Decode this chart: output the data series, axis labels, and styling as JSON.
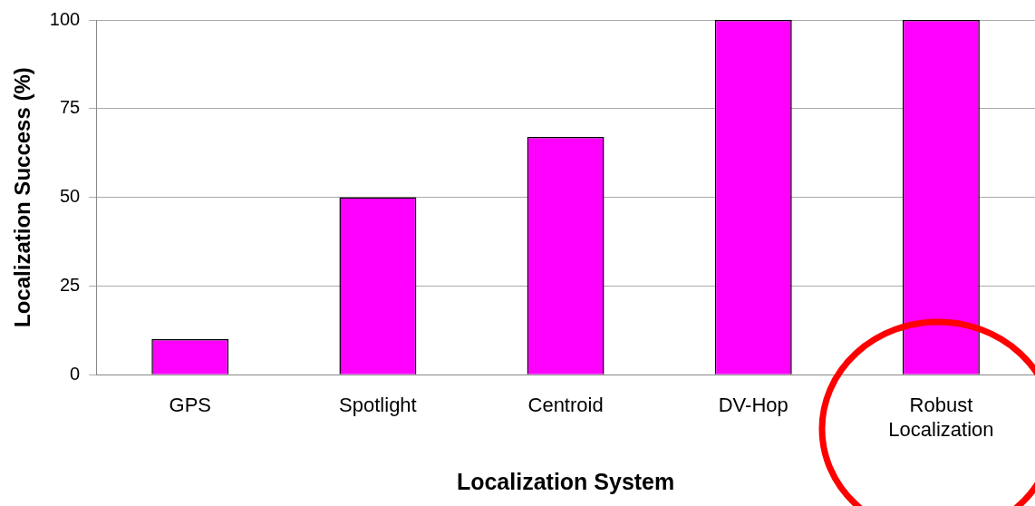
{
  "chart_data": {
    "type": "bar",
    "xlabel": "Localization System",
    "ylabel": "Localization Success (%)",
    "categories": [
      "GPS",
      "Spotlight",
      "Centroid",
      "DV-Hop",
      "Robust Localization"
    ],
    "values": [
      10,
      50,
      67,
      100,
      100
    ],
    "color": "#ff00ff",
    "ylim": [
      0,
      100
    ],
    "yticks": [
      0,
      25,
      50,
      75,
      100
    ],
    "grid": "y",
    "legend": false
  }
}
